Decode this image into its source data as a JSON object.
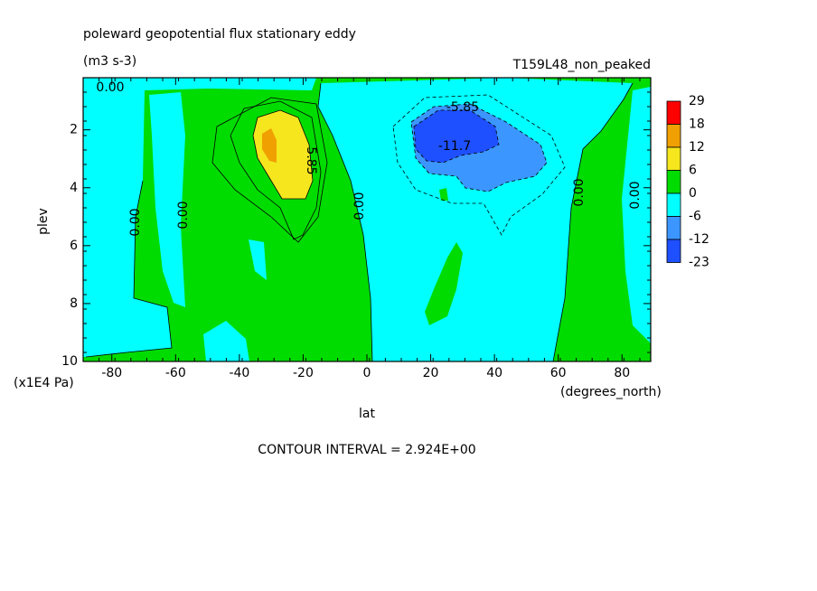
{
  "chart_data": {
    "type": "contour",
    "title": "poleward geopotential flux stationary eddy",
    "subtitle": "(m3 s-3)",
    "dataset": "T159L48_non_peaked",
    "x_label": "lat",
    "x_units": "(degrees_north)",
    "y_label": "plev",
    "y_units": "(x1E4 Pa)",
    "xlim": [
      -89,
      89
    ],
    "xticks": [
      -80,
      -60,
      -40,
      -20,
      0,
      20,
      40,
      60,
      80
    ],
    "ylim": [
      10,
      0.2
    ],
    "yticks": [
      2,
      4,
      6,
      8,
      10
    ],
    "colorbar": {
      "levels": [
        29,
        18,
        12,
        6,
        0,
        -6,
        -12,
        -23
      ],
      "colors": [
        "#ff0000",
        "#f0a000",
        "#f5e61e",
        "#00dc00",
        "#00ffff",
        "#3c96ff",
        "#1e50ff"
      ]
    },
    "contour_labels": [
      {
        "value": 0,
        "label": "0.00"
      },
      {
        "value": 5.85,
        "label": "5.85"
      },
      {
        "value": -5.85,
        "label": "-5.85"
      },
      {
        "value": -11.7,
        "label": "-11.7"
      },
      {
        "value": 0,
        "label": "0.00"
      },
      {
        "value": 0,
        "label": "0.00"
      },
      {
        "value": 0,
        "label": "0.00"
      },
      {
        "value": 0,
        "label": "0.00"
      },
      {
        "value": 0,
        "label": "0.00"
      }
    ],
    "annotation": "CONTOUR INTERVAL = 2.924E+00"
  }
}
